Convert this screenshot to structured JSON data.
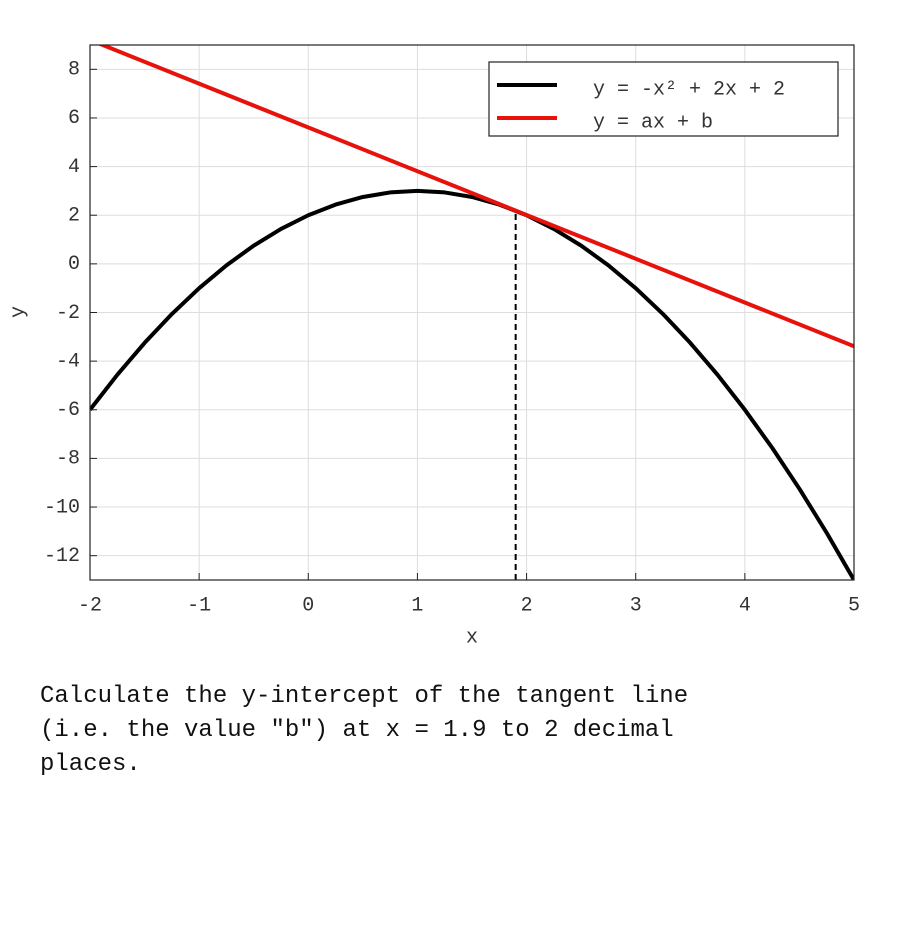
{
  "chart_data": {
    "type": "line",
    "x_label": "x",
    "y_label": "y",
    "xlim": [
      -2,
      5
    ],
    "ylim": [
      -13,
      9
    ],
    "xticks": [
      -2,
      -1,
      0,
      1,
      2,
      3,
      4,
      5
    ],
    "yticks": [
      -12,
      -10,
      -8,
      -6,
      -4,
      -2,
      0,
      2,
      4,
      6,
      8
    ],
    "grid": true,
    "legend": "upper right",
    "series": [
      {
        "name": "y = -x² + 2x + 2",
        "color": "#000000",
        "x": [
          -2,
          -1.75,
          -1.5,
          -1.25,
          -1,
          -0.75,
          -0.5,
          -0.25,
          0,
          0.25,
          0.5,
          0.75,
          1,
          1.25,
          1.5,
          1.75,
          2,
          2.25,
          2.5,
          2.75,
          3,
          3.25,
          3.5,
          3.75,
          4,
          4.25,
          4.5,
          4.75,
          5
        ],
        "values": [
          -6,
          -4.5625,
          -3.25,
          -2.0625,
          -1,
          -0.0625,
          0.75,
          1.4375,
          2,
          2.4375,
          2.75,
          2.9375,
          3,
          2.9375,
          2.75,
          2.4375,
          2,
          1.4375,
          0.75,
          -0.0625,
          -1,
          -2.0625,
          -3.25,
          -4.5625,
          -6,
          -7.5625,
          -9.25,
          -11.0625,
          -13
        ]
      },
      {
        "name": "y = ax + b",
        "color": "#e8120c",
        "x": [
          -2,
          5
        ],
        "values": [
          9.21,
          -3.39
        ]
      }
    ],
    "vline": {
      "x": 1.9,
      "y_top": 2.19
    }
  },
  "question": "Calculate the y-intercept of the tangent line (i.e. the value \"b\") at x = 1.9 to 2 decimal places."
}
